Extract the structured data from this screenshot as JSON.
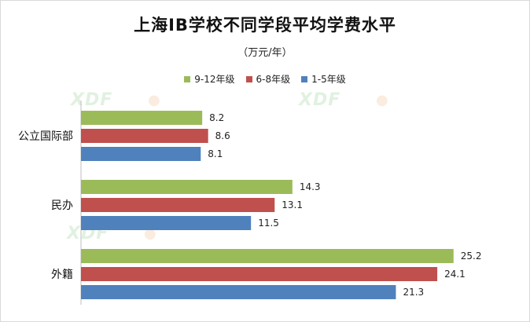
{
  "chart_data": {
    "type": "bar",
    "orientation": "horizontal",
    "title": "上海IB学校不同学段平均学费水平",
    "subtitle": "（万元/年）",
    "categories": [
      "公立国际部",
      "民办",
      "外籍"
    ],
    "series": [
      {
        "name": "9-12年级",
        "color": "#9bbb59",
        "values": [
          8.2,
          14.3,
          25.2
        ]
      },
      {
        "name": "6-8年级",
        "color": "#c0504d",
        "values": [
          8.6,
          13.1,
          24.1
        ]
      },
      {
        "name": "1-5年级",
        "color": "#4f81bd",
        "values": [
          8.1,
          11.5,
          21.3
        ]
      }
    ],
    "legend_position": "top",
    "grid": false,
    "xlim": [
      0,
      30
    ]
  }
}
